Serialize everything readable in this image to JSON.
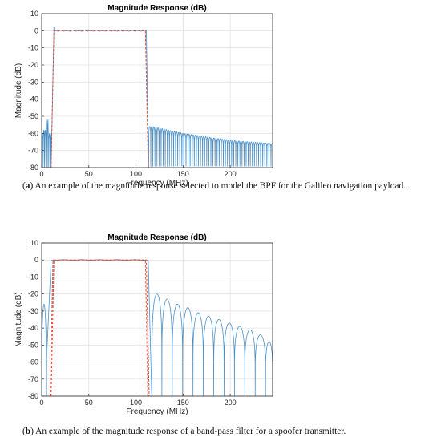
{
  "chart_data": [
    {
      "type": "line",
      "title": "Magnitude Response (dB)",
      "xlabel": "Frequency (MHz)",
      "ylabel": "Magnitude (dB)",
      "xlim": [
        0,
        245
      ],
      "ylim": [
        -80,
        10
      ],
      "xticks": [
        0,
        50,
        100,
        150,
        200
      ],
      "yticks": [
        10,
        0,
        -10,
        -20,
        -30,
        -40,
        -50,
        -60,
        -70,
        -80
      ],
      "grid": true,
      "series": [
        {
          "color": "#4a90c8",
          "style": "magnitude-response",
          "passband_edges": [
            12,
            111
          ],
          "passband_level": 0,
          "left_stopband_floor": -80,
          "right_stopband_start": [
            113,
            -82
          ],
          "stopband_ripple_envelope": [
            [
              118,
              -56
            ],
            [
              150,
              -60
            ],
            [
              200,
              -64
            ],
            [
              245,
              -66
            ]
          ],
          "left_stopband_peaks": [
            [
              3,
              -58
            ],
            [
              6,
              -52
            ],
            [
              8,
              -60
            ]
          ]
        },
        {
          "color": "#e04a3a",
          "style": "dashed-mask",
          "points": [
            [
              10,
              -80
            ],
            [
              13,
              0
            ],
            [
              110,
              0
            ],
            [
              113,
              -80
            ]
          ]
        }
      ],
      "caption_label": "a",
      "caption_text": "An example of the magnitude response selected to model the BPF for the Galileo navigation payload."
    },
    {
      "type": "line",
      "title": "Magnitude Response (dB)",
      "xlabel": "Frequency (MHz)",
      "ylabel": "Magnitude (dB)",
      "xlim": [
        0,
        245
      ],
      "ylim": [
        -80,
        10
      ],
      "xticks": [
        0,
        50,
        100,
        150,
        200
      ],
      "yticks": [
        10,
        0,
        -10,
        -20,
        -30,
        -40,
        -50,
        -60,
        -70,
        -80
      ],
      "grid": true,
      "series": [
        {
          "color": "#4a90c8",
          "style": "magnitude-response",
          "passband_edges": [
            10,
            113
          ],
          "passband_level": 0,
          "sidelobe_peaks": [
            [
              122,
              -20
            ],
            [
              133,
              -23
            ],
            [
              144,
              -26
            ],
            [
              155,
              -28
            ],
            [
              166,
              -31
            ],
            [
              177,
              -33
            ],
            [
              188,
              -35
            ],
            [
              199,
              -37
            ],
            [
              210,
              -39
            ],
            [
              221,
              -41
            ],
            [
              232,
              -44
            ],
            [
              243,
              -48
            ]
          ],
          "left_sidelobe_peaks": [
            [
              2,
              -26
            ],
            [
              6,
              -10
            ]
          ]
        },
        {
          "color": "#e04a3a",
          "style": "dashed-mask",
          "points": [
            [
              9,
              -80
            ],
            [
              12,
              0
            ],
            [
              111,
              0
            ],
            [
              114,
              -80
            ]
          ]
        }
      ],
      "caption_label": "b",
      "caption_text": "An example of the magnitude response of a band-pass filter for a spoofer transmitter."
    }
  ]
}
